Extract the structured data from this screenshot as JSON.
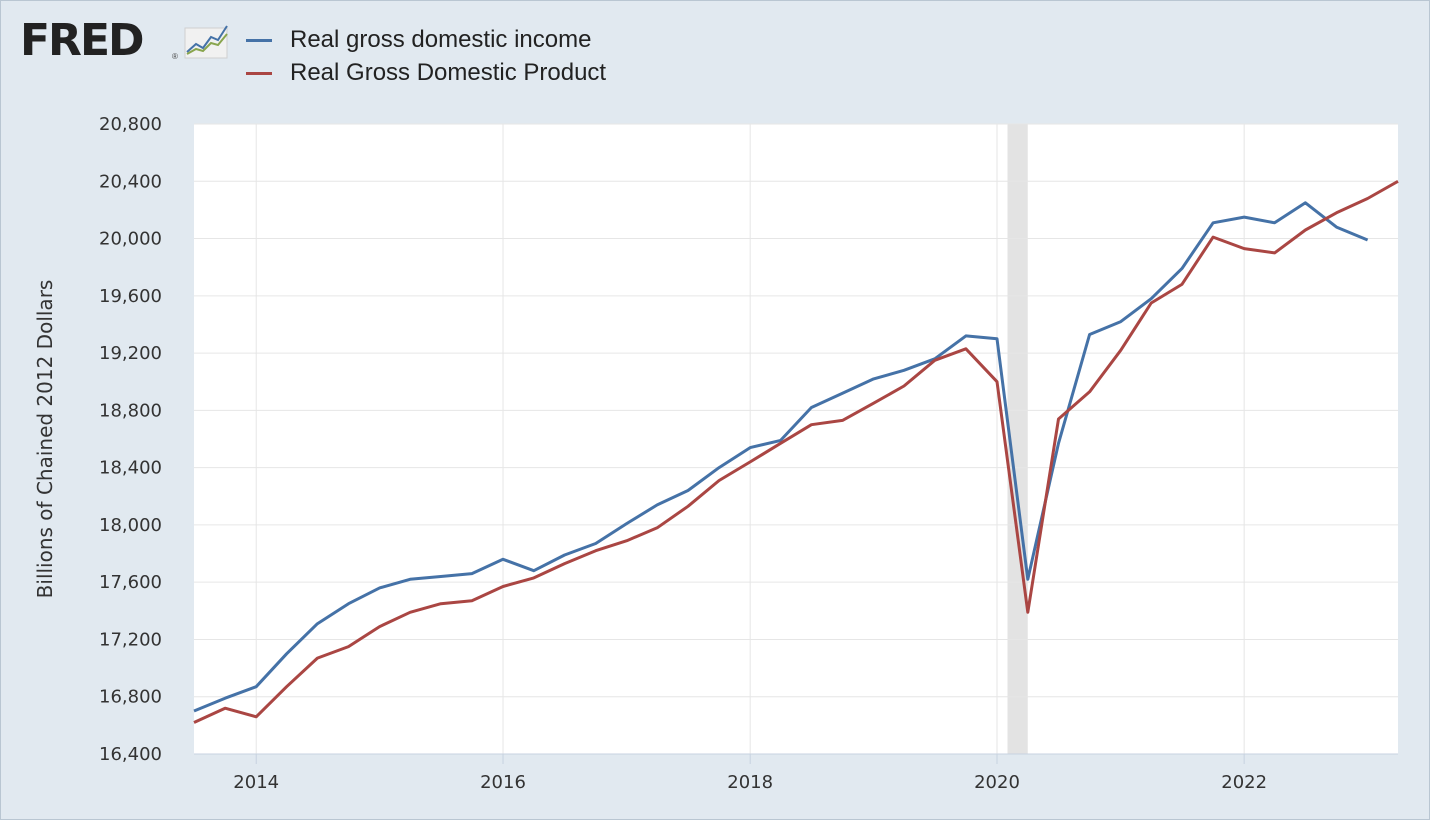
{
  "logo": {
    "text": "FRED",
    "registered": "®"
  },
  "colors": {
    "background": "#e1e9f0",
    "plot_bg": "#ffffff",
    "grid": "#e6e6e6",
    "recession": "#e3e3e3",
    "axis": "#c7d2e0"
  },
  "chart_data": {
    "type": "line",
    "ylabel": "Billions of Chained 2012 Dollars",
    "ylim": [
      16400,
      20800
    ],
    "yticks": [
      16400,
      16800,
      17200,
      17600,
      18000,
      18400,
      18800,
      19200,
      19600,
      20000,
      20400,
      20800
    ],
    "ytick_labels": [
      "16,400",
      "16,800",
      "17,200",
      "17,600",
      "18,000",
      "18,400",
      "18,800",
      "19,200",
      "19,600",
      "20,000",
      "20,400",
      "20,800"
    ],
    "xlim": [
      "2013-07-01",
      "2023-04-01"
    ],
    "xticks": [
      "2014-01-01",
      "2016-01-01",
      "2018-01-01",
      "2020-01-01",
      "2022-01-01"
    ],
    "xtick_labels": [
      "2014",
      "2016",
      "2018",
      "2020",
      "2022"
    ],
    "grid": true,
    "legend_position": "top-left",
    "recession_band": [
      "2020-02-01",
      "2020-04-01"
    ],
    "x": [
      "2013-07-01",
      "2013-10-01",
      "2014-01-01",
      "2014-04-01",
      "2014-07-01",
      "2014-10-01",
      "2015-01-01",
      "2015-04-01",
      "2015-07-01",
      "2015-10-01",
      "2016-01-01",
      "2016-04-01",
      "2016-07-01",
      "2016-10-01",
      "2017-01-01",
      "2017-04-01",
      "2017-07-01",
      "2017-10-01",
      "2018-01-01",
      "2018-04-01",
      "2018-07-01",
      "2018-10-01",
      "2019-01-01",
      "2019-04-01",
      "2019-07-01",
      "2019-10-01",
      "2020-01-01",
      "2020-04-01",
      "2020-07-01",
      "2020-10-01",
      "2021-01-01",
      "2021-04-01",
      "2021-07-01",
      "2021-10-01",
      "2022-01-01",
      "2022-04-01",
      "2022-07-01",
      "2022-10-01",
      "2023-01-01",
      "2023-04-01"
    ],
    "series": [
      {
        "name": "Real gross domestic income",
        "color": "#4572a7",
        "values": [
          16700,
          16790,
          16870,
          17100,
          17310,
          17450,
          17560,
          17620,
          17640,
          17660,
          17760,
          17680,
          17790,
          17870,
          18010,
          18140,
          18240,
          18400,
          18540,
          18590,
          18820,
          18920,
          19020,
          19080,
          19160,
          19320,
          19300,
          17620,
          18570,
          19330,
          19420,
          19580,
          19790,
          20110,
          20150,
          20110,
          20250,
          20080,
          19990,
          null
        ]
      },
      {
        "name": "Real Gross Domestic Product",
        "color": "#aa4643",
        "values": [
          16620,
          16720,
          16660,
          16870,
          17070,
          17150,
          17290,
          17390,
          17450,
          17470,
          17570,
          17630,
          17730,
          17820,
          17890,
          17980,
          18130,
          18310,
          18440,
          18570,
          18700,
          18730,
          18850,
          18970,
          19150,
          19230,
          19000,
          17390,
          18740,
          18930,
          19220,
          19550,
          19680,
          20010,
          19930,
          19900,
          20060,
          20180,
          20280,
          20400
        ]
      }
    ]
  }
}
